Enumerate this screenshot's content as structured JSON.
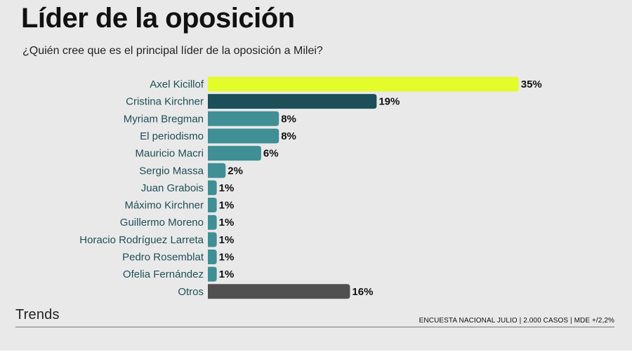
{
  "header": {
    "title": "Líder de la oposición",
    "subtitle": "¿Quién cree que es el principal líder de la oposición a Milei?"
  },
  "footer": {
    "brand": "Trends",
    "source": "ENCUESTA NACIONAL JULIO | 2.000 CASOS | MDE +/2,2%"
  },
  "chart_data": {
    "type": "bar",
    "orientation": "horizontal",
    "title": "Líder de la oposición",
    "subtitle": "¿Quién cree que es el principal líder de la oposición a Milei?",
    "xlabel": "",
    "ylabel": "",
    "xlim": [
      0,
      35
    ],
    "grid": false,
    "legend": "none",
    "value_suffix": "%",
    "categories": [
      "Axel Kicillof",
      "Cristina Kirchner",
      "Myriam Bregman",
      "El periodismo",
      "Mauricio Macri",
      "Sergio Massa",
      "Juan Grabois",
      "Máximo Kirchner",
      "Guillermo Moreno",
      "Horacio Rodríguez Larreta",
      "Pedro Rosemblat",
      "Ofelia Fernández",
      "Otros"
    ],
    "values": [
      35,
      19,
      8,
      8,
      6,
      2,
      1,
      1,
      1,
      1,
      1,
      1,
      16
    ],
    "colors": [
      "#e4fb2c",
      "#1c4f58",
      "#3f8f95",
      "#3f8f95",
      "#3f8f95",
      "#3f8f95",
      "#3f8f95",
      "#3f8f95",
      "#3f8f95",
      "#3f8f95",
      "#3f8f95",
      "#3f8f95",
      "#505050"
    ]
  }
}
